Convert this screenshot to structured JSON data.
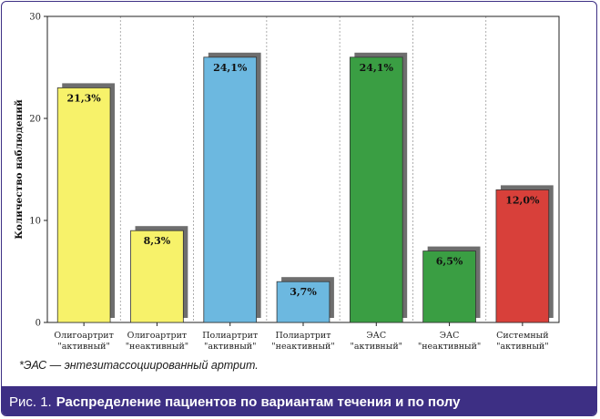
{
  "figure": {
    "caption_prefix": "Рис. 1.",
    "caption_title": "Распределение пациентов по вариантам течения и по полу",
    "footnote": "*ЭАС — энтезитассоциированный артрит."
  },
  "chart_data": {
    "type": "bar",
    "title": "",
    "xlabel": "",
    "ylabel": "Количество наблюдений",
    "ylim": [
      0,
      30
    ],
    "yticks": [
      0,
      10,
      20,
      30
    ],
    "grid": "vertical dashed",
    "categories": [
      [
        "Олигоартрит",
        "\"активный\""
      ],
      [
        "Олигоартрит",
        "\"неактивный\""
      ],
      [
        "Полиартрит",
        "\"активный\""
      ],
      [
        "Полиартрит",
        "\"неактивный\""
      ],
      [
        "ЭАС",
        "\"активный\""
      ],
      [
        "ЭАС",
        "\"неактивный\""
      ],
      [
        "Системный",
        "\"активный\""
      ]
    ],
    "values": [
      23,
      9,
      26,
      4,
      26,
      7,
      13
    ],
    "data_labels": [
      "21,3%",
      "8,3%",
      "24,1%",
      "3,7%",
      "24,1%",
      "6,5%",
      "12,0%"
    ],
    "colors": [
      "#f7f26a",
      "#f7f26a",
      "#6cb8e0",
      "#6cb8e0",
      "#3a9e43",
      "#3a9e43",
      "#d8403a"
    ],
    "shadow_color": "#6e6e6e"
  }
}
